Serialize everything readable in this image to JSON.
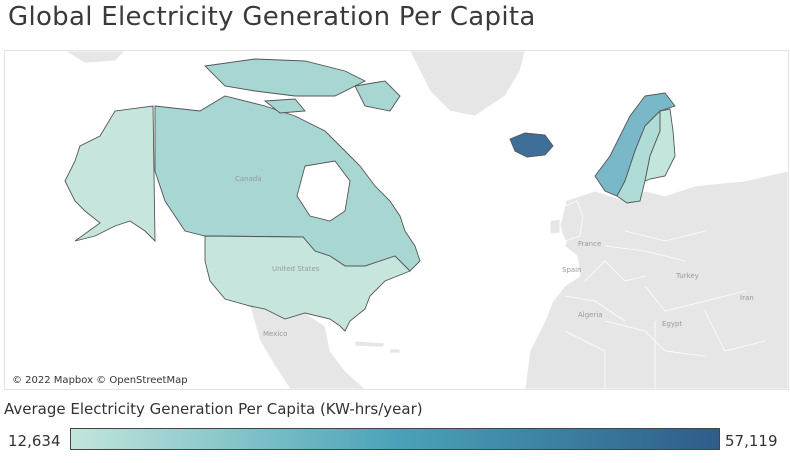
{
  "title": "Global Electricity Generation Per Capita",
  "map": {
    "attribution": "© 2022 Mapbox © OpenStreetMap",
    "place_labels": {
      "canada": "Canada",
      "united_states": "United States",
      "mexico": "Mexico",
      "france": "France",
      "spain": "Spain",
      "turkey": "Turkey",
      "iran": "Iran",
      "algeria": "Algeria",
      "egypt": "Egypt"
    },
    "background_land_color": "#e6e6e6",
    "border_color": "#555555"
  },
  "legend": {
    "title": "Average Electricity Generation Per Capita (KW-hrs/year)",
    "min_label": "12,634",
    "max_label": "57,119",
    "color_min": "#c2e6dc",
    "color_max": "#2f5c8a"
  },
  "countries": [
    {
      "name": "Canada",
      "color": "#a8d6d3"
    },
    {
      "name": "United States",
      "color": "#c6e6dd"
    },
    {
      "name": "Iceland",
      "color": "#3f6e98"
    },
    {
      "name": "Norway",
      "color": "#78b8c9"
    },
    {
      "name": "Sweden",
      "color": "#b0dcd8"
    },
    {
      "name": "Finland",
      "color": "#c2e6dc"
    }
  ]
}
